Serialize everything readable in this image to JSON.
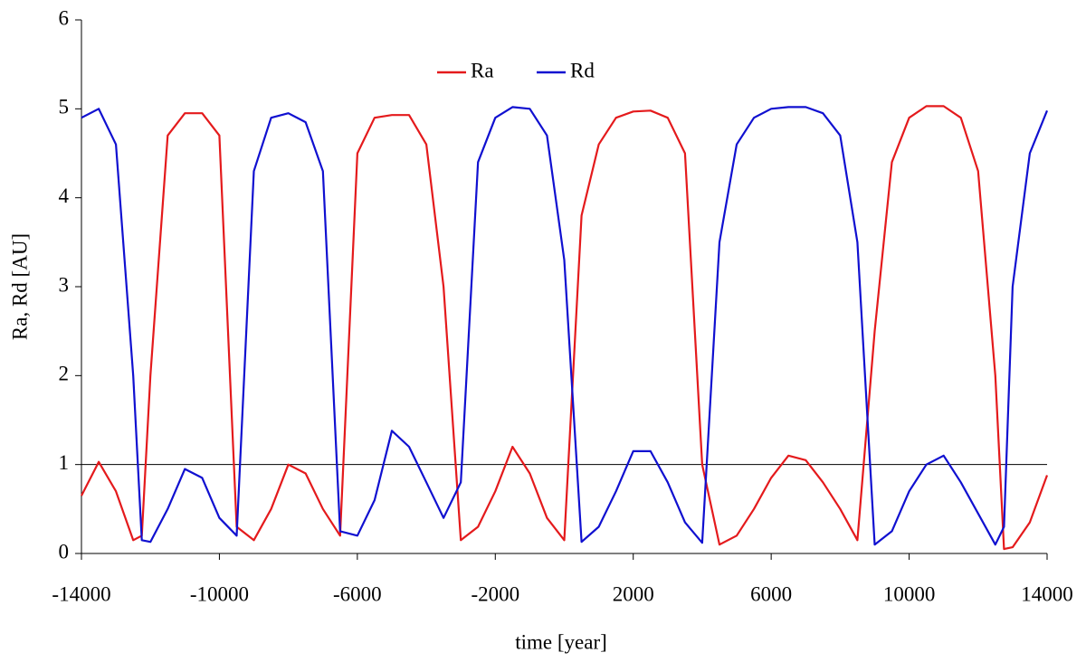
{
  "chart_data": {
    "type": "line",
    "xlabel": "time [year]",
    "ylabel": "Ra, Rd [AU]",
    "x": [
      -14000,
      -13500,
      -13000,
      -12500,
      -12250,
      -12000,
      -11500,
      -11000,
      -10500,
      -10000,
      -9500,
      -9000,
      -8500,
      -8000,
      -7500,
      -7000,
      -6500,
      -6000,
      -5500,
      -5000,
      -4500,
      -4000,
      -3500,
      -3000,
      -2500,
      -2000,
      -1500,
      -1000,
      -500,
      0,
      500,
      1000,
      1500,
      2000,
      2500,
      3000,
      3500,
      4000,
      4500,
      5000,
      5500,
      6000,
      6500,
      7000,
      7500,
      8000,
      8500,
      9000,
      9500,
      10000,
      10500,
      11000,
      11500,
      12000,
      12500,
      12750,
      13000,
      13500,
      14000
    ],
    "series": [
      {
        "name": "Ra",
        "color": "#e41a1c",
        "values": [
          0.65,
          1.03,
          0.7,
          0.15,
          0.2,
          2.0,
          4.7,
          4.95,
          4.95,
          4.7,
          0.3,
          0.15,
          0.5,
          1.0,
          0.9,
          0.5,
          0.2,
          4.5,
          4.9,
          4.93,
          4.93,
          4.6,
          3.0,
          0.15,
          0.3,
          0.7,
          1.2,
          0.9,
          0.4,
          0.15,
          3.8,
          4.6,
          4.9,
          4.97,
          4.98,
          4.9,
          4.5,
          1.0,
          0.1,
          0.2,
          0.5,
          0.85,
          1.1,
          1.05,
          0.8,
          0.5,
          0.15,
          2.5,
          4.4,
          4.9,
          5.03,
          5.03,
          4.9,
          4.3,
          2.0,
          0.05,
          0.07,
          0.35,
          0.88
        ]
      },
      {
        "name": "Rd",
        "color": "#1010d0",
        "values": [
          4.9,
          5.0,
          4.6,
          2.0,
          0.15,
          0.13,
          0.5,
          0.95,
          0.85,
          0.4,
          0.2,
          4.3,
          4.9,
          4.95,
          4.85,
          4.3,
          0.25,
          0.2,
          0.6,
          1.38,
          1.2,
          0.8,
          0.4,
          0.8,
          4.4,
          4.9,
          5.02,
          5.0,
          4.7,
          3.3,
          0.13,
          0.3,
          0.7,
          1.15,
          1.15,
          0.8,
          0.35,
          0.12,
          3.5,
          4.6,
          4.9,
          5.0,
          5.02,
          5.02,
          4.95,
          4.7,
          3.5,
          0.1,
          0.25,
          0.7,
          1.0,
          1.1,
          0.8,
          0.45,
          0.1,
          0.3,
          3.0,
          4.5,
          4.98
        ]
      }
    ],
    "reference_line": 1,
    "xlim": [
      -14000,
      14000
    ],
    "xticks": [
      -14000,
      -10000,
      -6000,
      -2000,
      2000,
      6000,
      10000,
      14000
    ],
    "ylim": [
      0,
      6
    ],
    "yticks": [
      0,
      1,
      2,
      3,
      4,
      5,
      6
    ],
    "legend": "top"
  }
}
